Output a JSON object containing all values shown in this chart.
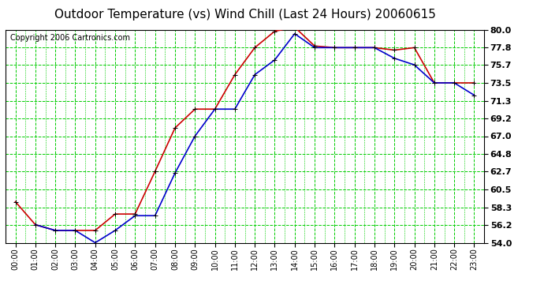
{
  "title": "Outdoor Temperature (vs) Wind Chill (Last 24 Hours) 20060615",
  "copyright": "Copyright 2006 Cartronics.com",
  "hours": [
    "00:00",
    "01:00",
    "02:00",
    "03:00",
    "04:00",
    "05:00",
    "06:00",
    "07:00",
    "08:00",
    "09:00",
    "10:00",
    "11:00",
    "12:00",
    "13:00",
    "14:00",
    "15:00",
    "16:00",
    "17:00",
    "18:00",
    "19:00",
    "20:00",
    "21:00",
    "22:00",
    "23:00"
  ],
  "temp": [
    59.0,
    56.2,
    55.5,
    55.5,
    55.5,
    57.5,
    57.5,
    62.7,
    68.0,
    70.3,
    70.3,
    74.5,
    77.8,
    79.8,
    80.3,
    78.0,
    77.8,
    77.8,
    77.8,
    77.5,
    77.8,
    73.5,
    73.5,
    73.5
  ],
  "windchill": [
    null,
    56.2,
    55.5,
    55.5,
    54.0,
    55.5,
    57.3,
    57.3,
    62.5,
    67.0,
    70.3,
    70.3,
    74.5,
    76.3,
    79.5,
    77.8,
    77.8,
    77.8,
    77.8,
    76.5,
    75.7,
    73.5,
    73.5,
    72.0
  ],
  "temp_color": "#cc0000",
  "windchill_color": "#0000cc",
  "bg_color": "#ffffff",
  "plot_bg_color": "#ffffff",
  "grid_color": "#00cc00",
  "ylim": [
    54.0,
    80.0
  ],
  "yticks": [
    54.0,
    56.2,
    58.3,
    60.5,
    62.7,
    64.8,
    67.0,
    69.2,
    71.3,
    73.5,
    75.7,
    77.8,
    80.0
  ],
  "title_fontsize": 11,
  "copyright_fontsize": 7,
  "marker": "+",
  "marker_size": 5,
  "linewidth": 1.2
}
